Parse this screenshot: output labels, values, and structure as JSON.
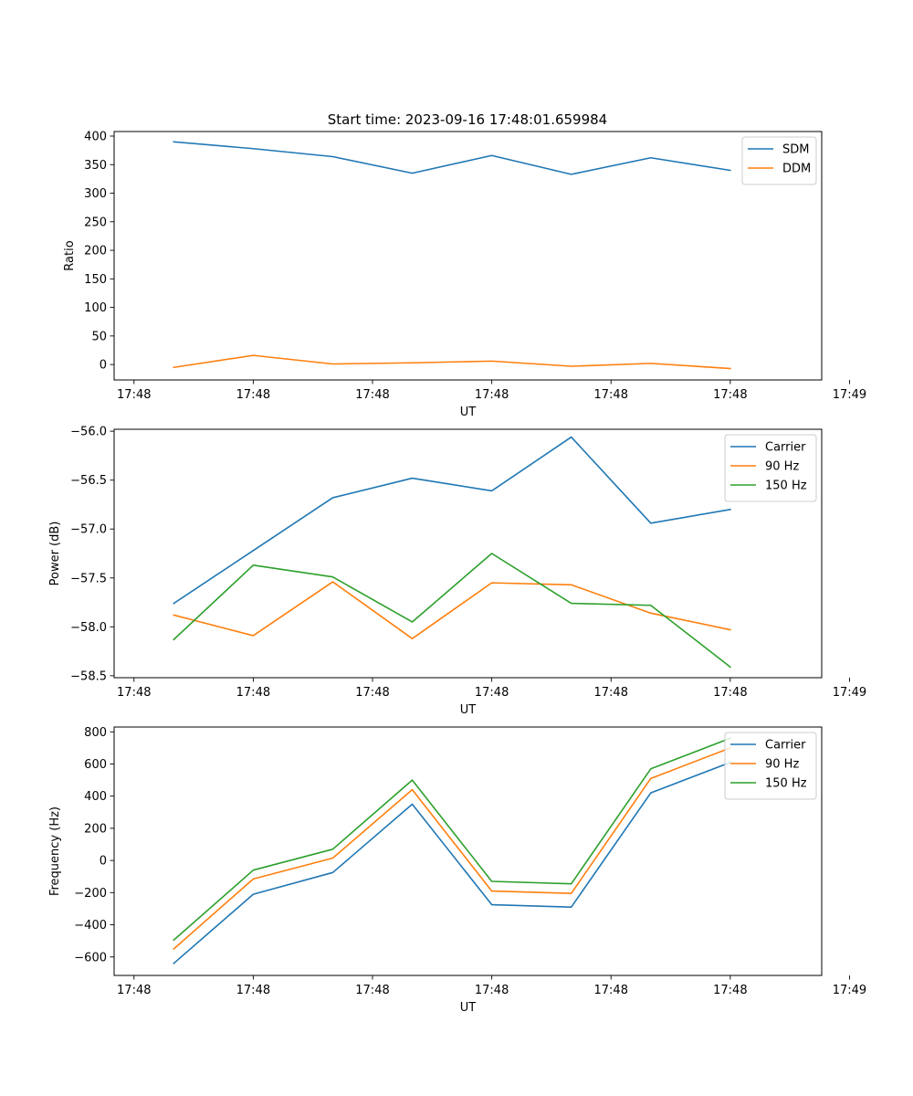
{
  "title": "Start time: 2023-09-16 17:48:01.659984",
  "colors": {
    "blue": "#1f77b4",
    "orange": "#ff7f0e",
    "green": "#2ca02c"
  },
  "chart_data": [
    {
      "type": "line",
      "title": "Start time: 2023-09-16 17:48:01.659984",
      "xlabel": "UT",
      "ylabel": "Ratio",
      "x": [
        1,
        2,
        3,
        4,
        5,
        6,
        7,
        8
      ],
      "xlim": [
        0.25,
        9.15
      ],
      "xticks": [
        0.5,
        2,
        3.5,
        5,
        6.5,
        8,
        9.5
      ],
      "xtick_labels": [
        "17:48",
        "17:48",
        "17:48",
        "17:48",
        "17:48",
        "17:48",
        "17:49"
      ],
      "ylim": [
        -27,
        408
      ],
      "yticks": [
        0,
        50,
        100,
        150,
        200,
        250,
        300,
        350,
        400
      ],
      "ytick_labels": [
        "0",
        "50",
        "100",
        "150",
        "200",
        "250",
        "300",
        "350",
        "400"
      ],
      "legend": "top-right",
      "series": [
        {
          "name": "SDM",
          "color": "#1f77b4",
          "values": [
            390,
            378,
            364,
            335,
            366,
            333,
            362,
            340
          ]
        },
        {
          "name": "DDM",
          "color": "#ff7f0e",
          "values": [
            -5,
            16,
            1,
            3,
            6,
            -3,
            2,
            -7
          ]
        }
      ]
    },
    {
      "type": "line",
      "title": "",
      "xlabel": "UT",
      "ylabel": "Power (dB)",
      "x": [
        1,
        2,
        3,
        4,
        5,
        6,
        7,
        8
      ],
      "xlim": [
        0.25,
        9.15
      ],
      "xticks": [
        0.5,
        2,
        3.5,
        5,
        6.5,
        8,
        9.5
      ],
      "xtick_labels": [
        "17:48",
        "17:48",
        "17:48",
        "17:48",
        "17:48",
        "17:48",
        "17:49"
      ],
      "ylim": [
        -58.52,
        -55.98
      ],
      "yticks": [
        -58.5,
        -58.0,
        -57.5,
        -57.0,
        -56.5,
        -56.0
      ],
      "ytick_labels": [
        "−58.5",
        "−58.0",
        "−57.5",
        "−57.0",
        "−56.5",
        "−56.0"
      ],
      "legend": "top-right",
      "series": [
        {
          "name": "Carrier",
          "color": "#1f77b4",
          "values": [
            -57.76,
            -57.22,
            -56.68,
            -56.48,
            -56.61,
            -56.06,
            -56.94,
            -56.8
          ]
        },
        {
          "name": "90 Hz",
          "color": "#ff7f0e",
          "values": [
            -57.88,
            -58.09,
            -57.54,
            -58.12,
            -57.55,
            -57.57,
            -57.86,
            -58.03
          ]
        },
        {
          "name": "150 Hz",
          "color": "#2ca02c",
          "values": [
            -58.13,
            -57.37,
            -57.49,
            -57.95,
            -57.25,
            -57.76,
            -57.78,
            -58.41
          ]
        }
      ]
    },
    {
      "type": "line",
      "title": "",
      "xlabel": "UT",
      "ylabel": "Frequency (Hz)",
      "x": [
        1,
        2,
        3,
        4,
        5,
        6,
        7,
        8
      ],
      "xlim": [
        0.25,
        9.15
      ],
      "xticks": [
        0.5,
        2,
        3.5,
        5,
        6.5,
        8,
        9.5
      ],
      "xtick_labels": [
        "17:48",
        "17:48",
        "17:48",
        "17:48",
        "17:48",
        "17:48",
        "17:49"
      ],
      "ylim": [
        -715,
        830
      ],
      "yticks": [
        -600,
        -400,
        -200,
        0,
        200,
        400,
        600,
        800
      ],
      "ytick_labels": [
        "−600",
        "−400",
        "−200",
        "0",
        "200",
        "400",
        "600",
        "800"
      ],
      "legend": "top-right",
      "series": [
        {
          "name": "Carrier",
          "color": "#1f77b4",
          "values": [
            -640,
            -210,
            -75,
            350,
            -275,
            -290,
            420,
            610
          ]
        },
        {
          "name": "90 Hz",
          "color": "#ff7f0e",
          "values": [
            -550,
            -115,
            15,
            440,
            -190,
            -205,
            510,
            700
          ]
        },
        {
          "name": "150 Hz",
          "color": "#2ca02c",
          "values": [
            -495,
            -60,
            70,
            500,
            -130,
            -145,
            570,
            760
          ]
        }
      ]
    }
  ]
}
